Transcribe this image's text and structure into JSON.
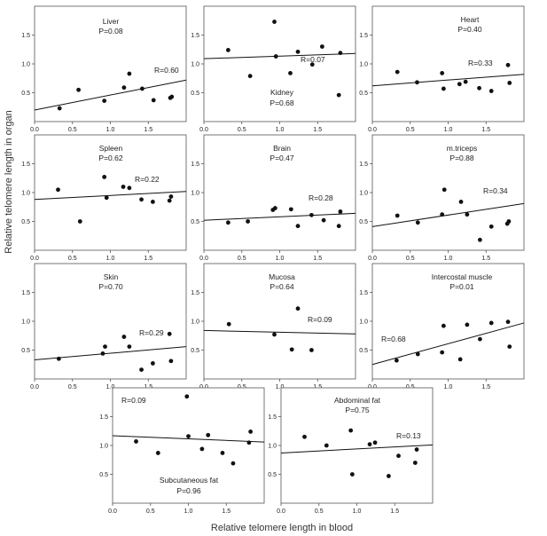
{
  "figure": {
    "xlabel": "Relative telomere length in blood",
    "ylabel": "Relative telomere length in organ"
  },
  "chart_data": [
    {
      "type": "scatter",
      "title": "Liver",
      "p": "P=0.08",
      "r": "R=0.60",
      "xlim": [
        0,
        2
      ],
      "ylim": [
        0,
        2
      ],
      "xticks": [
        "0.0",
        "0.5",
        "1.0",
        "1.5"
      ],
      "yticks": [
        "0.5",
        "1.0",
        "1.5"
      ],
      "x": [
        0.33,
        0.58,
        0.92,
        1.18,
        1.25,
        1.42,
        1.57,
        1.79,
        1.81
      ],
      "y": [
        0.23,
        0.55,
        0.36,
        0.59,
        0.83,
        0.57,
        0.37,
        0.41,
        0.43
      ],
      "fit": [
        [
          0,
          0.2
        ],
        [
          2,
          0.72
        ]
      ]
    },
    {
      "type": "scatter",
      "title": "Kidney",
      "p": "P=0.68",
      "r": "R=0.07",
      "xlim": [
        0,
        2
      ],
      "ylim": [
        0,
        2
      ],
      "xticks": [
        "0.0",
        "0.5",
        "1.0",
        "1.5"
      ],
      "yticks": [
        "0.5",
        "1.0",
        "1.5"
      ],
      "x": [
        0.32,
        0.61,
        0.93,
        0.95,
        1.14,
        1.24,
        1.43,
        1.56,
        1.78,
        1.8
      ],
      "y": [
        1.24,
        0.79,
        1.73,
        1.13,
        0.84,
        1.21,
        0.99,
        1.3,
        0.46,
        1.19
      ],
      "fit": [
        [
          0,
          1.09
        ],
        [
          2,
          1.18
        ]
      ]
    },
    {
      "type": "scatter",
      "title": "Heart",
      "p": "P=0.40",
      "r": "R=0.33",
      "xlim": [
        0,
        2
      ],
      "ylim": [
        0,
        2
      ],
      "xticks": [
        "0.0",
        "0.5",
        "1.0",
        "1.5"
      ],
      "yticks": [
        "0.5",
        "1.0",
        "1.5"
      ],
      "x": [
        0.33,
        0.59,
        0.92,
        0.94,
        1.15,
        1.23,
        1.41,
        1.57,
        1.79,
        1.81
      ],
      "y": [
        0.86,
        0.68,
        0.84,
        0.57,
        0.65,
        0.69,
        0.58,
        0.53,
        0.98,
        0.67
      ],
      "fit": [
        [
          0,
          0.62
        ],
        [
          2,
          0.82
        ]
      ]
    },
    {
      "type": "scatter",
      "title": "Spleen",
      "p": "P=0.62",
      "r": "R=0.22",
      "xlim": [
        0,
        2
      ],
      "ylim": [
        0,
        2
      ],
      "xticks": [
        "0.0",
        "0.5",
        "1.0",
        "1.5"
      ],
      "yticks": [
        "0.5",
        "1.0",
        "1.5"
      ],
      "x": [
        0.31,
        0.6,
        0.92,
        0.95,
        1.17,
        1.25,
        1.41,
        1.56,
        1.78,
        1.8
      ],
      "y": [
        1.05,
        0.5,
        1.27,
        0.91,
        1.1,
        1.08,
        0.88,
        0.84,
        0.86,
        0.93
      ],
      "fit": [
        [
          0,
          0.88
        ],
        [
          2,
          1.02
        ]
      ]
    },
    {
      "type": "scatter",
      "title": "Brain",
      "p": "P=0.47",
      "r": "R=0.28",
      "xlim": [
        0,
        2
      ],
      "ylim": [
        0,
        2
      ],
      "xticks": [
        "0.0",
        "0.5",
        "1.0",
        "1.5"
      ],
      "yticks": [
        "0.5",
        "1.0",
        "1.5"
      ],
      "x": [
        0.32,
        0.58,
        0.91,
        0.94,
        1.15,
        1.24,
        1.42,
        1.58,
        1.78,
        1.8
      ],
      "y": [
        0.48,
        0.5,
        0.7,
        0.73,
        0.71,
        0.42,
        0.61,
        0.52,
        0.42,
        0.67
      ],
      "fit": [
        [
          0,
          0.52
        ],
        [
          2,
          0.64
        ]
      ]
    },
    {
      "type": "scatter",
      "title": "m.triceps",
      "p": "P=0.88",
      "r": "R=0.34",
      "xlim": [
        0,
        2
      ],
      "ylim": [
        0,
        2
      ],
      "xticks": [
        "0.0",
        "0.5",
        "1.0",
        "1.5"
      ],
      "yticks": [
        "0.5",
        "1.0",
        "1.5"
      ],
      "x": [
        0.33,
        0.6,
        0.92,
        0.95,
        1.17,
        1.25,
        1.42,
        1.57,
        1.78,
        1.8
      ],
      "y": [
        0.6,
        0.48,
        0.62,
        1.05,
        0.84,
        0.62,
        0.18,
        0.41,
        0.46,
        0.5
      ],
      "fit": [
        [
          0,
          0.41
        ],
        [
          2,
          0.81
        ]
      ]
    },
    {
      "type": "scatter",
      "title": "Skin",
      "p": "P=0.70",
      "r": "R=0.29",
      "xlim": [
        0,
        2
      ],
      "ylim": [
        0,
        2
      ],
      "xticks": [
        "0.0",
        "0.5",
        "1.0",
        "1.5"
      ],
      "yticks": [
        "0.5",
        "1.0",
        "1.5"
      ],
      "x": [
        0.32,
        0.9,
        0.93,
        1.18,
        1.25,
        1.41,
        1.56,
        1.78,
        1.8
      ],
      "y": [
        0.35,
        0.44,
        0.56,
        0.73,
        0.56,
        0.16,
        0.27,
        0.78,
        0.31
      ],
      "fit": [
        [
          0,
          0.33
        ],
        [
          2,
          0.56
        ]
      ]
    },
    {
      "type": "scatter",
      "title": "Mucosa",
      "p": "P=0.64",
      "r": "R=0.09",
      "xlim": [
        0,
        2
      ],
      "ylim": [
        0,
        2
      ],
      "xticks": [
        "0.0",
        "0.5",
        "1.0",
        "1.5"
      ],
      "yticks": [
        "0.5",
        "1.0",
        "1.5"
      ],
      "x": [
        0.33,
        0.93,
        1.16,
        1.24,
        1.42
      ],
      "y": [
        0.95,
        0.77,
        0.51,
        1.22,
        0.5
      ],
      "fit": [
        [
          0,
          0.84
        ],
        [
          2,
          0.78
        ]
      ]
    },
    {
      "type": "scatter",
      "title": "Intercostal muscle",
      "p": "P=0.01",
      "r": "R=0.68",
      "xlim": [
        0,
        2
      ],
      "ylim": [
        0,
        2
      ],
      "xticks": [
        "0.0",
        "0.5",
        "1.0",
        "1.5"
      ],
      "yticks": [
        "0.5",
        "1.0",
        "1.5"
      ],
      "x": [
        0.32,
        0.6,
        0.92,
        0.94,
        1.16,
        1.25,
        1.42,
        1.57,
        1.79,
        1.81
      ],
      "y": [
        0.32,
        0.43,
        0.46,
        0.92,
        0.34,
        0.94,
        0.69,
        0.97,
        0.99,
        0.56
      ],
      "fit": [
        [
          0,
          0.25
        ],
        [
          2,
          0.97
        ]
      ]
    },
    {
      "type": "scatter",
      "title": "Subcutaneous fat",
      "p": "P=0.96",
      "r": "R=0.09",
      "xlim": [
        0,
        2
      ],
      "ylim": [
        0,
        2
      ],
      "xticks": [
        "0.0",
        "0.5",
        "1.0",
        "1.5"
      ],
      "yticks": [
        "0.5",
        "1.0",
        "1.5"
      ],
      "x": [
        0.31,
        0.6,
        0.98,
        1.0,
        1.18,
        1.26,
        1.45,
        1.59,
        1.8,
        1.82
      ],
      "y": [
        1.07,
        0.87,
        1.85,
        1.16,
        0.94,
        1.18,
        0.87,
        0.69,
        1.05,
        1.24
      ],
      "fit": [
        [
          0,
          1.17
        ],
        [
          2,
          1.06
        ]
      ]
    },
    {
      "type": "scatter",
      "title": "Abdominal fat",
      "p": "P=0.75",
      "r": "R=0.13",
      "xlim": [
        0,
        2
      ],
      "ylim": [
        0,
        2
      ],
      "xticks": [
        "0.0",
        "0.5",
        "1.0",
        "1.5"
      ],
      "yticks": [
        "0.5",
        "1.0",
        "1.5"
      ],
      "x": [
        0.31,
        0.6,
        0.92,
        0.94,
        1.17,
        1.24,
        1.42,
        1.55,
        1.77,
        1.79
      ],
      "y": [
        1.15,
        1.0,
        1.26,
        0.5,
        1.02,
        1.05,
        0.47,
        0.82,
        0.7,
        0.93
      ],
      "fit": [
        [
          0,
          0.87
        ],
        [
          2,
          1.01
        ]
      ]
    }
  ]
}
